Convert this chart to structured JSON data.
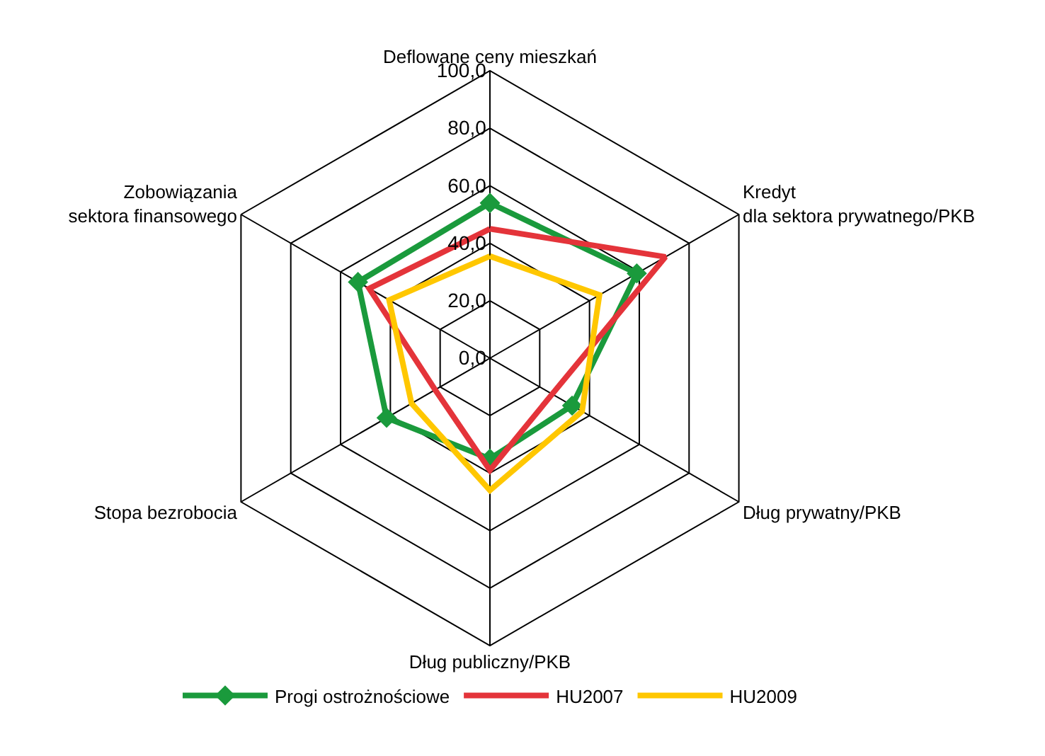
{
  "chart_data": {
    "type": "radar",
    "categories": [
      "Deflowane ceny mieszkań",
      "Kredyt\ndla sektora prywatnego/PKB",
      "Dług prywatny/PKB",
      "Dług publiczny/PKB",
      "Stopa bezrobocia",
      "Zobowiązania\nsektora finansowego"
    ],
    "ylim": [
      0,
      100
    ],
    "yticks": [
      {
        "value": 0,
        "label": "0,0"
      },
      {
        "value": 20,
        "label": "20,0"
      },
      {
        "value": 40,
        "label": "40,0"
      },
      {
        "value": 60,
        "label": "60,0"
      },
      {
        "value": 80,
        "label": "80,0"
      },
      {
        "value": 100,
        "label": "100,0"
      }
    ],
    "legend": "bottom",
    "grid": true,
    "series": [
      {
        "name": "Progi ostrożnościowe",
        "color": "#1a9a3c",
        "marker": "diamond",
        "values": [
          54,
          59,
          33,
          35,
          41.5,
          53
        ]
      },
      {
        "name": "HU2007",
        "color": "#e4343a",
        "marker": "none",
        "values": [
          45,
          70.5,
          25,
          39,
          22,
          48.5
        ]
      },
      {
        "name": "HU2009",
        "color": "#ffc700",
        "marker": "none",
        "values": [
          35.5,
          44,
          37,
          46,
          31.5,
          40.5
        ]
      }
    ]
  }
}
